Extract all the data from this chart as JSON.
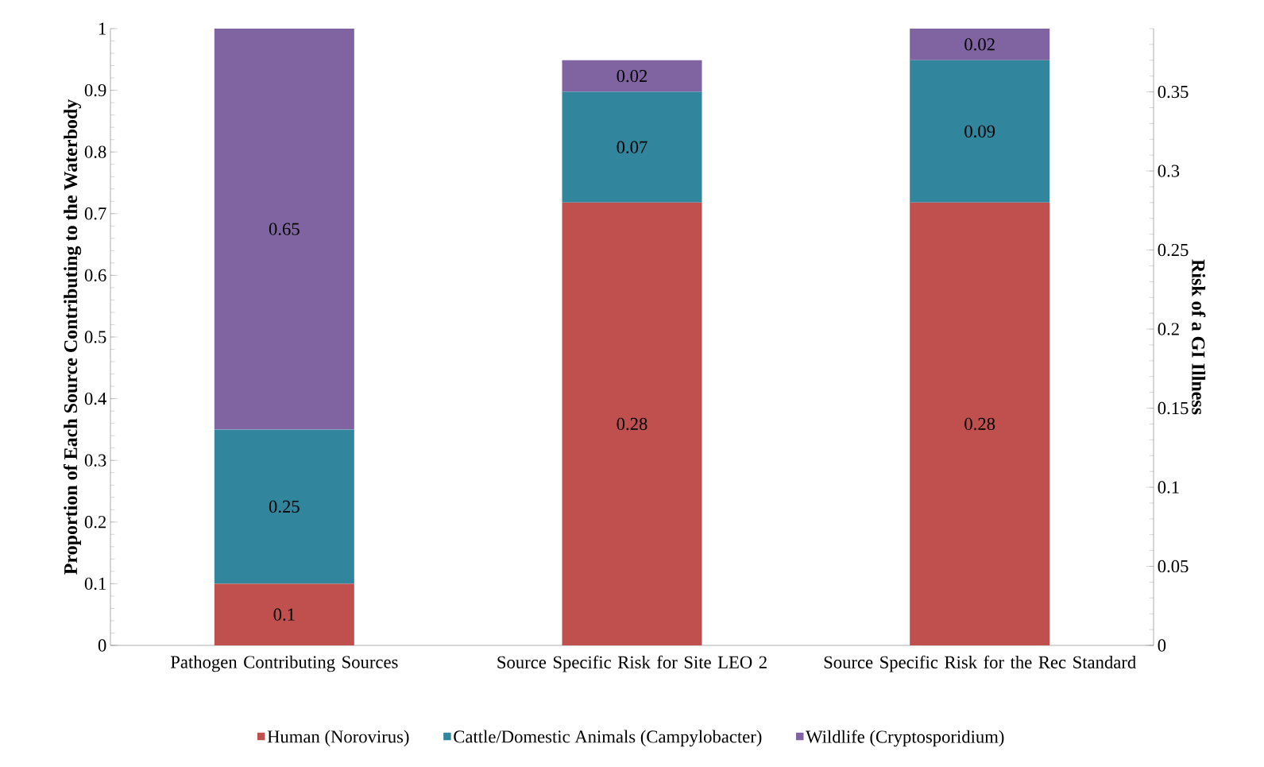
{
  "chart_data": {
    "type": "bar",
    "stacked": true,
    "data_labels": true,
    "legend": "bottom",
    "grid": false,
    "categories": [
      "Pathogen Contributing Sources",
      "Source Specific Risk for Site LEO 2",
      "Source Specific Risk for the Rec Standard"
    ],
    "ylabel": "Proportion of Each Source Contributing to the Waterbody",
    "y2label": "Risk of a GI Illness",
    "ylim": [
      0,
      1
    ],
    "yticks": [
      0,
      0.1,
      0.2,
      0.3,
      0.4,
      0.5,
      0.6,
      0.7,
      0.8,
      0.9,
      1
    ],
    "y2lim": [
      0,
      0.39
    ],
    "y2ticks": [
      0,
      0.05,
      0.1,
      0.15,
      0.2,
      0.25,
      0.3,
      0.35
    ],
    "series": [
      {
        "name": "Human (Norovirus)",
        "color": "#c0504d",
        "values": [
          0.1,
          null,
          null
        ]
      },
      {
        "name": "Cattle/Domestic Animals (Campylobacter)",
        "color": "#31859c",
        "values": [
          0.25,
          null,
          null
        ]
      },
      {
        "name": "Wildlife (Cryptosporidium)",
        "color": "#8064a2",
        "values": [
          0.65,
          null,
          null
        ]
      },
      {
        "color": "#c0504d",
        "values": [
          null,
          0.28,
          0.28
        ],
        "axis": "y2"
      },
      {
        "color": "#31859c",
        "values": [
          null,
          0.07,
          0.09
        ],
        "axis": "y2"
      },
      {
        "color": "#8064a2",
        "values": [
          null,
          0.02,
          0.02
        ],
        "axis": "y2"
      }
    ]
  }
}
